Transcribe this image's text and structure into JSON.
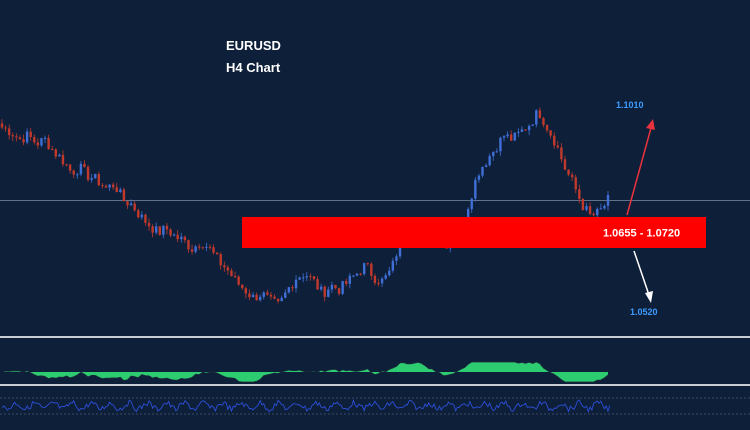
{
  "header": {
    "title": "EURUSD",
    "subtitle": "H4 Chart"
  },
  "colors": {
    "background": "#0e1f3a",
    "bull": "#3f6fd6",
    "bear": "#c0392b",
    "zone": "#ff0000",
    "up_arrow": "#e8323c",
    "down_arrow": "#ffffff",
    "target_text": "#3d9bff",
    "histogram": "#2ecc71",
    "oscillator": "#2c4fd8",
    "separator": "#c8ccd4"
  },
  "chart_data": {
    "type": "candlestick",
    "symbol": "EURUSD",
    "timeframe": "H4",
    "y_range": [
      1.048,
      1.106
    ],
    "price_path": [
      1.098,
      1.097,
      1.095,
      1.096,
      1.094,
      1.095,
      1.092,
      1.09,
      1.087,
      1.088,
      1.086,
      1.085,
      1.083,
      1.084,
      1.08,
      1.079,
      1.076,
      1.074,
      1.072,
      1.073,
      1.071,
      1.07,
      1.068,
      1.07,
      1.068,
      1.065,
      1.063,
      1.06,
      1.058,
      1.056,
      1.057,
      1.055,
      1.054,
      1.058,
      1.061,
      1.062,
      1.06,
      1.057,
      1.059,
      1.058,
      1.06,
      1.062,
      1.064,
      1.061,
      1.06,
      1.063,
      1.07,
      1.074,
      1.072,
      1.07,
      1.071,
      1.069,
      1.07,
      1.072,
      1.08,
      1.087,
      1.09,
      1.093,
      1.096,
      1.095,
      1.097,
      1.099,
      1.102,
      1.098,
      1.094,
      1.088,
      1.084,
      1.079,
      1.076,
      1.077,
      1.08
    ],
    "zone": {
      "low": 1.0655,
      "high": 1.072,
      "label": "1.0655 - 1.0720"
    },
    "current_price": 1.08,
    "targets": [
      {
        "direction": "up",
        "label": "1.1010",
        "value": 1.101
      },
      {
        "direction": "down",
        "label": "1.0520",
        "value": 1.052
      }
    ],
    "indicators": [
      "histogram",
      "oscillator"
    ]
  }
}
